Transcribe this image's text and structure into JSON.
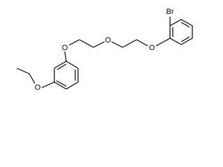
{
  "atoms": {
    "bromine": "Br",
    "oxygen_ring_right": "O",
    "oxygen_middle": "O",
    "oxygen_ring_left": "O",
    "oxygen_ethoxy": "O"
  }
}
